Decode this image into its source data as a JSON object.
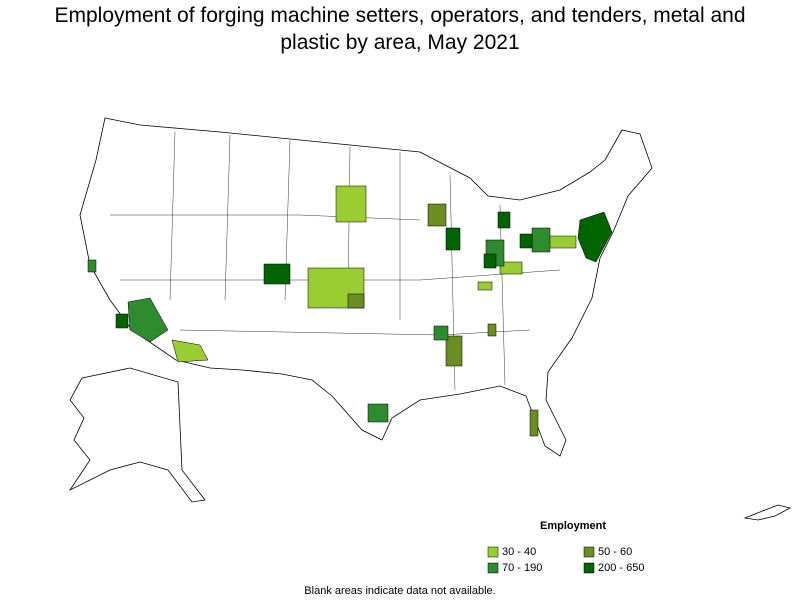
{
  "title": "Employment of forging machine setters, operators, and tenders, metal and plastic by area, May 2021",
  "legend": {
    "title": "Employment",
    "items": [
      {
        "label": "30 - 40",
        "color": "#9acd32"
      },
      {
        "label": "50 - 60",
        "color": "#6b8e23"
      },
      {
        "label": "70 - 190",
        "color": "#2e8b2e"
      },
      {
        "label": "200 - 650",
        "color": "#006400"
      }
    ]
  },
  "note": "Blank areas indicate data not available."
}
